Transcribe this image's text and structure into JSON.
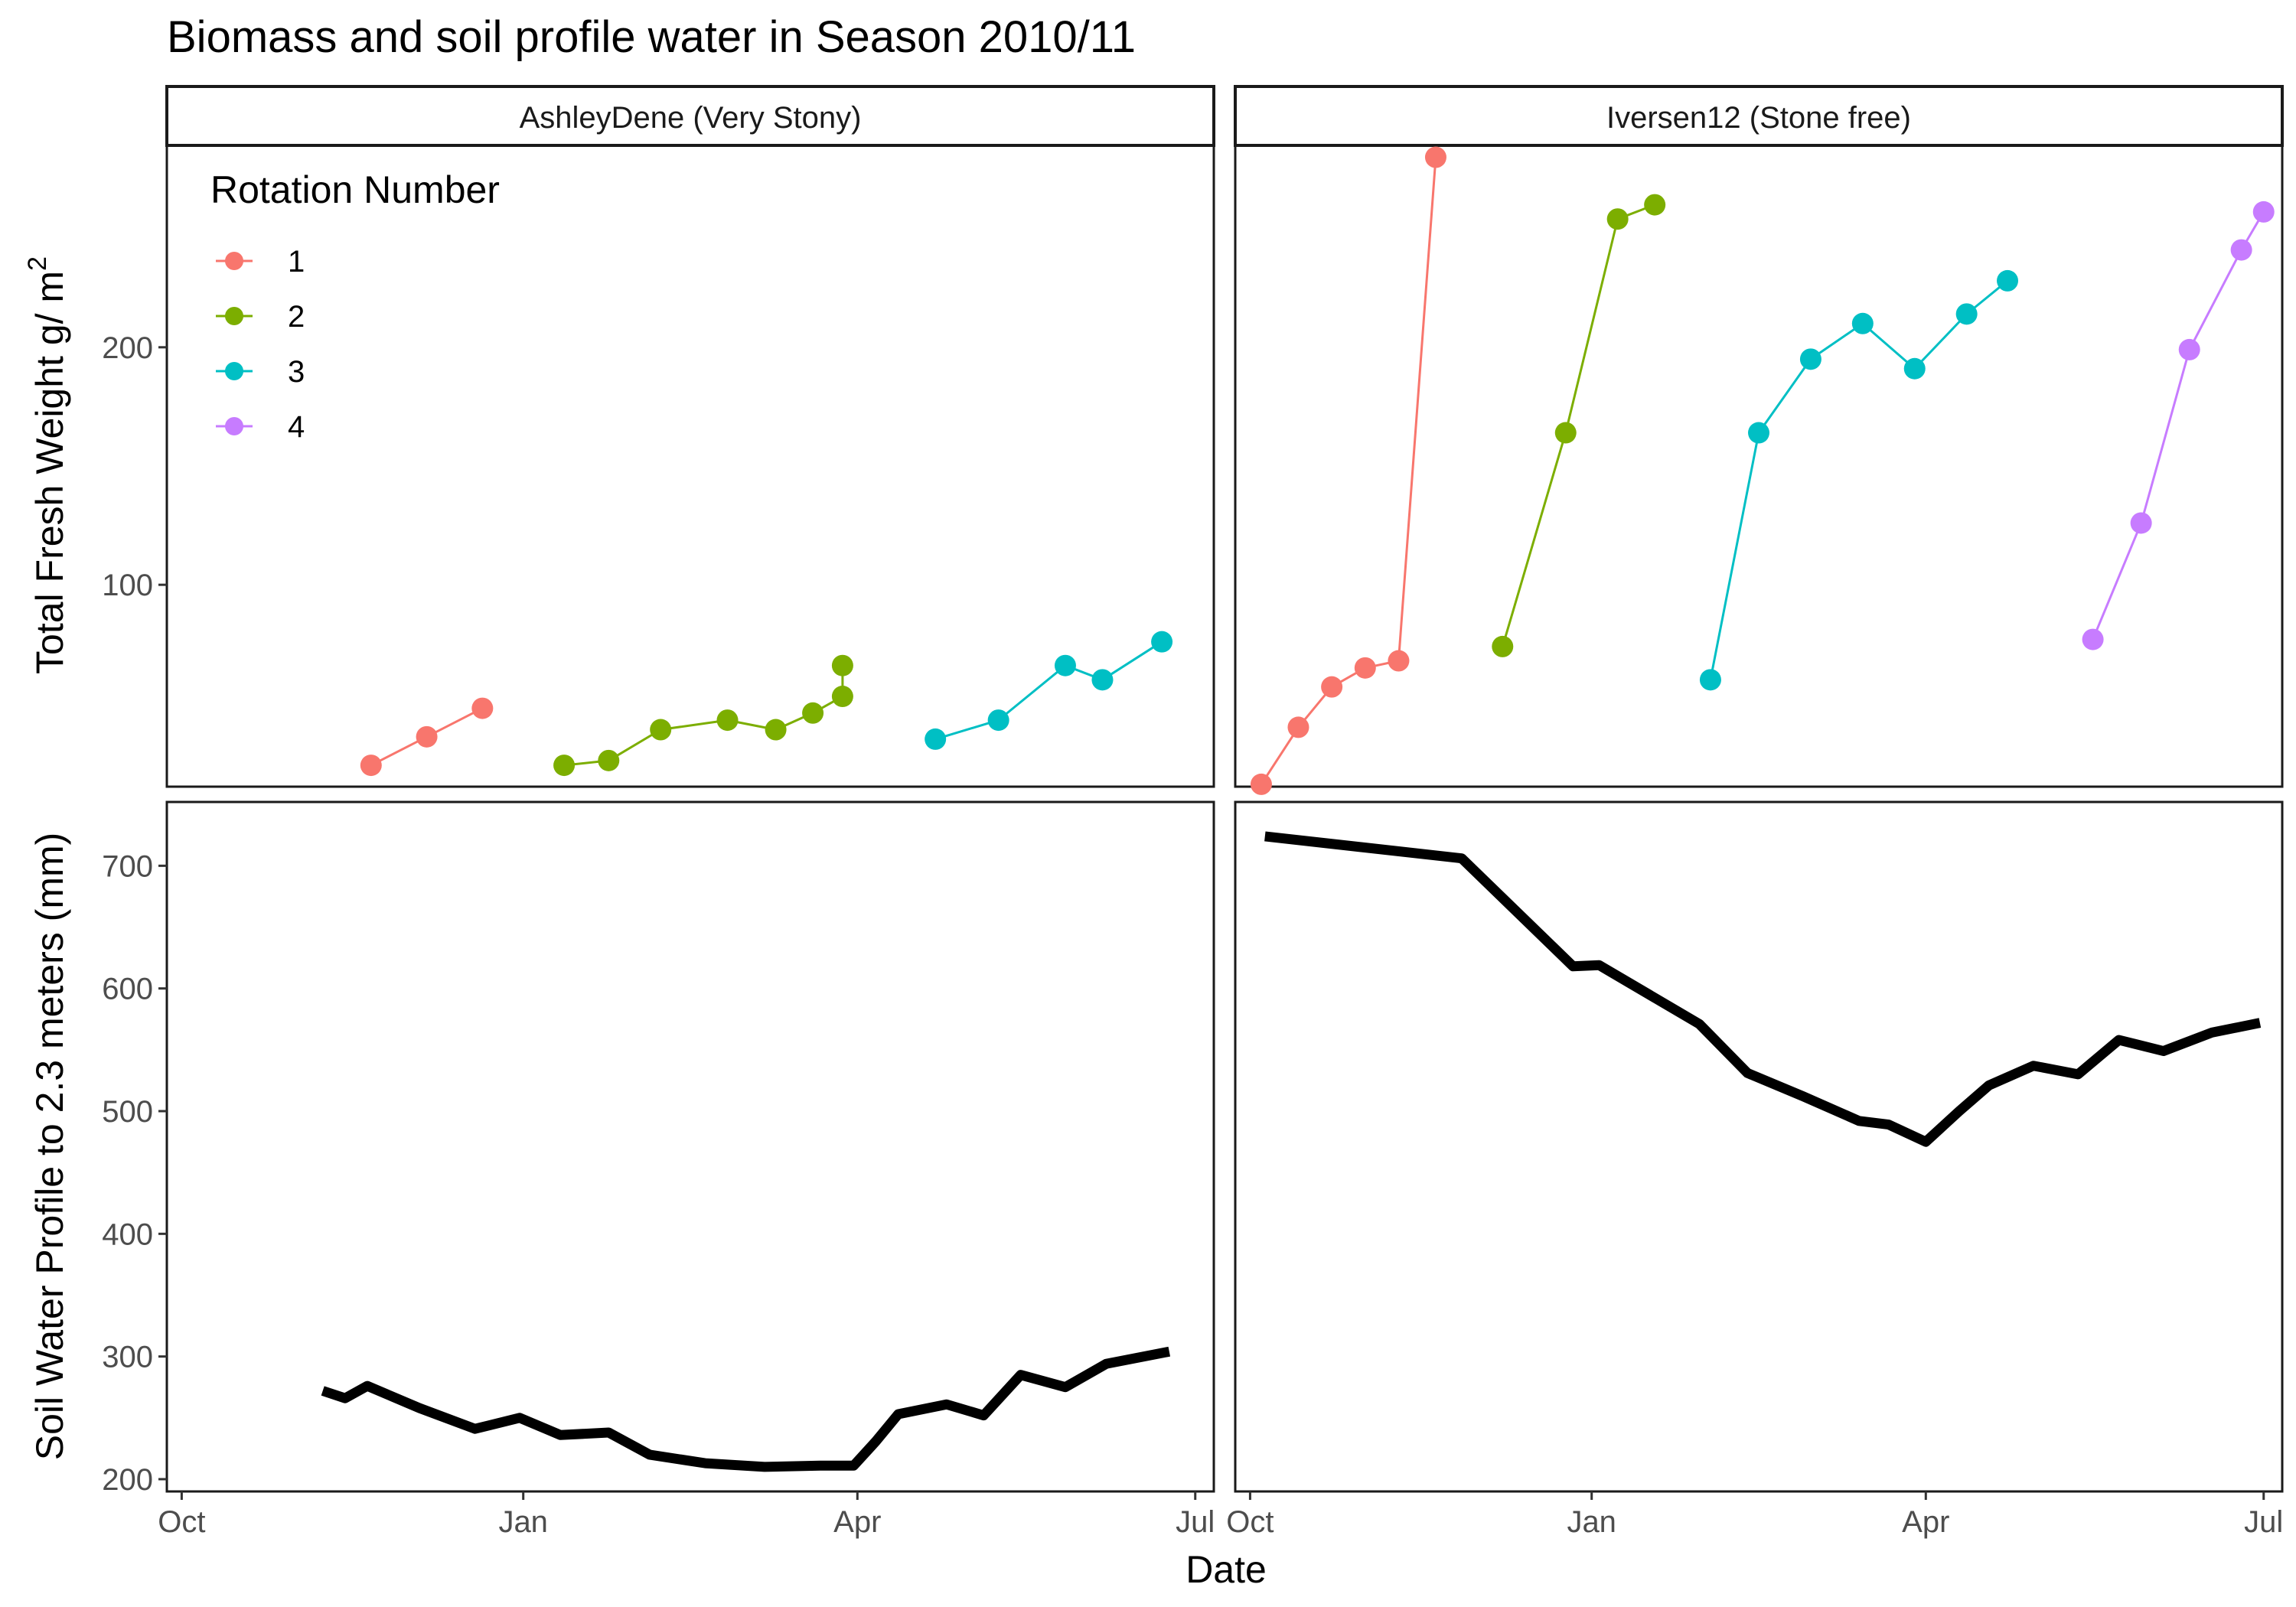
{
  "chart_data": {
    "type": "line",
    "title": "Biomass and soil profile water in Season 2010/11",
    "xlabel": "Date",
    "ylabels": {
      "top": "Total Fresh Weight g/ m",
      "top_superscript": "2",
      "bottom": "Soil Water Profile to 2.3 meters (mm)"
    },
    "x_ticks": [
      "Oct",
      "Jan",
      "Apr",
      "Jul"
    ],
    "x_tick_dates": [
      "2010-10-01",
      "2011-01-01",
      "2011-04-01",
      "2011-07-01"
    ],
    "xlim": [
      "2010-09-27",
      "2011-07-06"
    ],
    "panels": [
      "AshleyDene (Very Stony)",
      "Iversen12 (Stone free)"
    ],
    "top_row": {
      "ylim": [
        15,
        285
      ],
      "y_ticks": [
        100,
        200
      ]
    },
    "bottom_row": {
      "ylim": [
        190,
        752
      ],
      "y_ticks": [
        200,
        300,
        400,
        500,
        600,
        700
      ]
    },
    "legend": {
      "title": "Rotation Number",
      "placement": "top-left inside AshleyDene panel",
      "entries": [
        {
          "label": "1",
          "color": "#F8766D"
        },
        {
          "label": "2",
          "color": "#7CAE00"
        },
        {
          "label": "3",
          "color": "#00BFC4"
        },
        {
          "label": "4",
          "color": "#C77CFF"
        }
      ]
    },
    "biomass": {
      "AshleyDene (Very Stony)": [
        {
          "rotation": "1",
          "points": [
            [
              "2010-11-21",
              24
            ],
            [
              "2010-12-06",
              36
            ],
            [
              "2010-12-21",
              48
            ]
          ]
        },
        {
          "rotation": "2",
          "points": [
            [
              "2011-01-12",
              24
            ],
            [
              "2011-01-24",
              26
            ],
            [
              "2011-02-07",
              39
            ],
            [
              "2011-02-25",
              43
            ],
            [
              "2011-03-10",
              39
            ],
            [
              "2011-03-20",
              46
            ],
            [
              "2011-03-28",
              53
            ],
            [
              "2011-03-28",
              66
            ]
          ]
        },
        {
          "rotation": "3",
          "points": [
            [
              "2011-04-22",
              35
            ],
            [
              "2011-05-09",
              43
            ],
            [
              "2011-05-27",
              66
            ],
            [
              "2011-06-06",
              60
            ],
            [
              "2011-06-22",
              76
            ]
          ]
        }
      ],
      "Iversen12 (Stone free)": [
        {
          "rotation": "1",
          "points": [
            [
              "2010-10-04",
              16
            ],
            [
              "2010-10-14",
              40
            ],
            [
              "2010-10-23",
              57
            ],
            [
              "2010-11-01",
              65
            ],
            [
              "2010-11-10",
              68
            ],
            [
              "2010-11-20",
              280
            ]
          ]
        },
        {
          "rotation": "2",
          "points": [
            [
              "2010-12-08",
              74
            ],
            [
              "2010-12-25",
              164
            ],
            [
              "2011-01-08",
              254
            ],
            [
              "2011-01-18",
              260
            ]
          ]
        },
        {
          "rotation": "3",
          "points": [
            [
              "2011-02-02",
              60
            ],
            [
              "2011-02-15",
              164
            ],
            [
              "2011-03-01",
              195
            ],
            [
              "2011-03-15",
              210
            ],
            [
              "2011-03-29",
              191
            ],
            [
              "2011-04-12",
              214
            ],
            [
              "2011-04-23",
              228
            ]
          ]
        },
        {
          "rotation": "4",
          "points": [
            [
              "2011-05-16",
              77
            ],
            [
              "2011-05-29",
              126
            ],
            [
              "2011-06-11",
              199
            ],
            [
              "2011-06-25",
              241
            ],
            [
              "2011-07-01",
              257
            ]
          ]
        }
      ]
    },
    "soil_water": {
      "AshleyDene (Very Stony)": [
        [
          "2010-11-08",
          272
        ],
        [
          "2010-11-14",
          266
        ],
        [
          "2010-11-20",
          276
        ],
        [
          "2010-12-04",
          258
        ],
        [
          "2010-12-19",
          241
        ],
        [
          "2010-12-31",
          250
        ],
        [
          "2011-01-11",
          236
        ],
        [
          "2011-01-24",
          238
        ],
        [
          "2011-02-04",
          220
        ],
        [
          "2011-02-19",
          213
        ],
        [
          "2011-03-07",
          210
        ],
        [
          "2011-03-22",
          211
        ],
        [
          "2011-03-31",
          211
        ],
        [
          "2011-04-06",
          231
        ],
        [
          "2011-04-12",
          253
        ],
        [
          "2011-04-25",
          261
        ],
        [
          "2011-05-05",
          252
        ],
        [
          "2011-05-15",
          285
        ],
        [
          "2011-05-27",
          275
        ],
        [
          "2011-06-07",
          294
        ],
        [
          "2011-06-24",
          304
        ]
      ],
      "Iversen12 (Stone free)": [
        [
          "2010-10-05",
          724
        ],
        [
          "2010-11-27",
          706
        ],
        [
          "2010-12-27",
          618
        ],
        [
          "2011-01-03",
          619
        ],
        [
          "2011-01-30",
          571
        ],
        [
          "2011-02-12",
          531
        ],
        [
          "2011-02-27",
          512
        ],
        [
          "2011-03-14",
          492
        ],
        [
          "2011-03-22",
          489
        ],
        [
          "2011-04-01",
          475
        ],
        [
          "2011-04-10",
          500
        ],
        [
          "2011-04-18",
          521
        ],
        [
          "2011-04-30",
          537
        ],
        [
          "2011-05-12",
          530
        ],
        [
          "2011-05-23",
          558
        ],
        [
          "2011-06-04",
          549
        ],
        [
          "2011-06-17",
          564
        ],
        [
          "2011-06-30",
          572
        ]
      ]
    }
  }
}
